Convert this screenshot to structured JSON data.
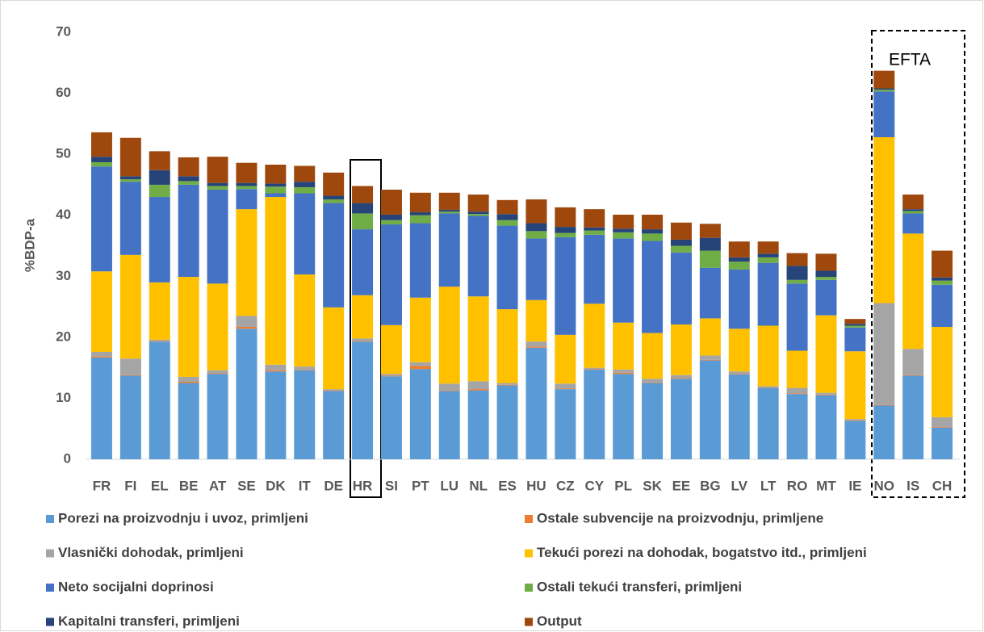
{
  "chart_data": {
    "type": "stacked_bar",
    "y_label": "%BDP-a",
    "annotation": "EFTA",
    "categories": [
      "FR",
      "FI",
      "EL",
      "BE",
      "AT",
      "SE",
      "DK",
      "IT",
      "DE",
      "HR",
      "SI",
      "PT",
      "LU",
      "NL",
      "ES",
      "HU",
      "CZ",
      "CY",
      "PL",
      "SK",
      "EE",
      "BG",
      "LV",
      "LT",
      "RO",
      "MT",
      "IE",
      "NO",
      "IS",
      "CH"
    ],
    "ylim": [
      0,
      70
    ],
    "yticks": [
      0,
      10,
      20,
      30,
      40,
      50,
      60,
      70
    ],
    "grid": false,
    "series": [
      {
        "name": "Porezi na proizvodnju i uvoz, primljeni",
        "color": "#5b9bd5",
        "values": [
          16.7,
          13.7,
          19.3,
          12.5,
          14.0,
          21.4,
          14.4,
          14.6,
          11.2,
          19.3,
          13.6,
          14.8,
          11.2,
          11.3,
          12.1,
          18.3,
          11.5,
          14.7,
          14.0,
          12.5,
          13.2,
          16.2,
          13.9,
          11.7,
          10.7,
          10.5,
          6.3,
          8.8,
          13.7,
          5.2
        ]
      },
      {
        "name": "Ostale subvencije na proizvodnju, primljene",
        "color": "#ed7d31",
        "values": [
          0.2,
          0.1,
          0.1,
          0.2,
          0.1,
          0.3,
          0.2,
          0.1,
          0.1,
          0.1,
          0.1,
          0.5,
          0.1,
          0.2,
          0.1,
          0.2,
          0.1,
          0.1,
          0.2,
          0.1,
          0.1,
          0.1,
          0.1,
          0.1,
          0.1,
          0.1,
          0.1,
          0.1,
          0.1,
          0.1
        ]
      },
      {
        "name": "Vlasnički dohodak, primljeni",
        "color": "#a5a5a5",
        "values": [
          0.7,
          2.7,
          0.2,
          0.8,
          0.5,
          1.8,
          0.9,
          0.5,
          0.2,
          0.4,
          0.3,
          0.6,
          1.1,
          1.3,
          0.3,
          0.8,
          0.8,
          0.2,
          0.5,
          0.6,
          0.5,
          0.7,
          0.4,
          0.2,
          0.9,
          0.3,
          0.2,
          16.7,
          4.3,
          1.6
        ]
      },
      {
        "name": "Tekući porezi na dohodak, bogatstvo itd., primljeni",
        "color": "#ffc000",
        "values": [
          13.2,
          17.0,
          9.4,
          16.4,
          14.2,
          17.5,
          27.5,
          15.1,
          13.4,
          7.1,
          8.0,
          10.6,
          15.9,
          13.9,
          12.1,
          6.8,
          8.0,
          10.5,
          7.7,
          7.5,
          8.3,
          6.1,
          7.0,
          9.9,
          6.1,
          12.7,
          11.1,
          27.2,
          18.9,
          14.8
        ]
      },
      {
        "name": "Neto socijalni doprinosi",
        "color": "#4472c4",
        "values": [
          17.2,
          12.0,
          14.0,
          15.1,
          15.4,
          3.3,
          0.6,
          13.3,
          17.1,
          10.8,
          16.5,
          12.2,
          12.0,
          13.2,
          13.7,
          10.1,
          16.0,
          11.3,
          13.8,
          15.1,
          11.8,
          8.3,
          9.7,
          10.3,
          11.0,
          5.8,
          3.9,
          7.5,
          3.3,
          6.9
        ]
      },
      {
        "name": "Ostali tekući transferi, primljeni",
        "color": "#70ad47",
        "values": [
          0.7,
          0.4,
          2.0,
          0.6,
          0.6,
          0.5,
          1.1,
          1.0,
          0.6,
          2.6,
          0.7,
          1.3,
          0.3,
          0.3,
          0.9,
          1.2,
          0.7,
          0.7,
          1.0,
          1.2,
          1.1,
          2.8,
          1.3,
          0.9,
          0.6,
          0.5,
          0.3,
          0.3,
          0.4,
          0.7
        ]
      },
      {
        "name": "Kapitalni transferi, primljeni",
        "color": "#264478",
        "values": [
          0.9,
          0.5,
          2.4,
          0.8,
          0.5,
          0.5,
          0.5,
          0.9,
          0.6,
          1.7,
          0.9,
          0.5,
          0.3,
          0.4,
          1.0,
          1.3,
          1.0,
          0.5,
          0.6,
          0.7,
          1.0,
          2.1,
          0.7,
          0.6,
          2.3,
          1.0,
          0.3,
          0.2,
          0.3,
          0.5
        ]
      },
      {
        "name": "Output",
        "color": "#9e480e",
        "values": [
          4.0,
          6.3,
          3.1,
          3.1,
          4.3,
          3.3,
          3.1,
          2.6,
          3.8,
          2.8,
          4.1,
          3.2,
          2.8,
          2.8,
          2.3,
          3.9,
          3.2,
          3.0,
          2.3,
          2.4,
          2.8,
          2.3,
          2.6,
          2.0,
          2.1,
          2.8,
          0.8,
          2.9,
          2.4,
          4.4
        ]
      }
    ]
  }
}
